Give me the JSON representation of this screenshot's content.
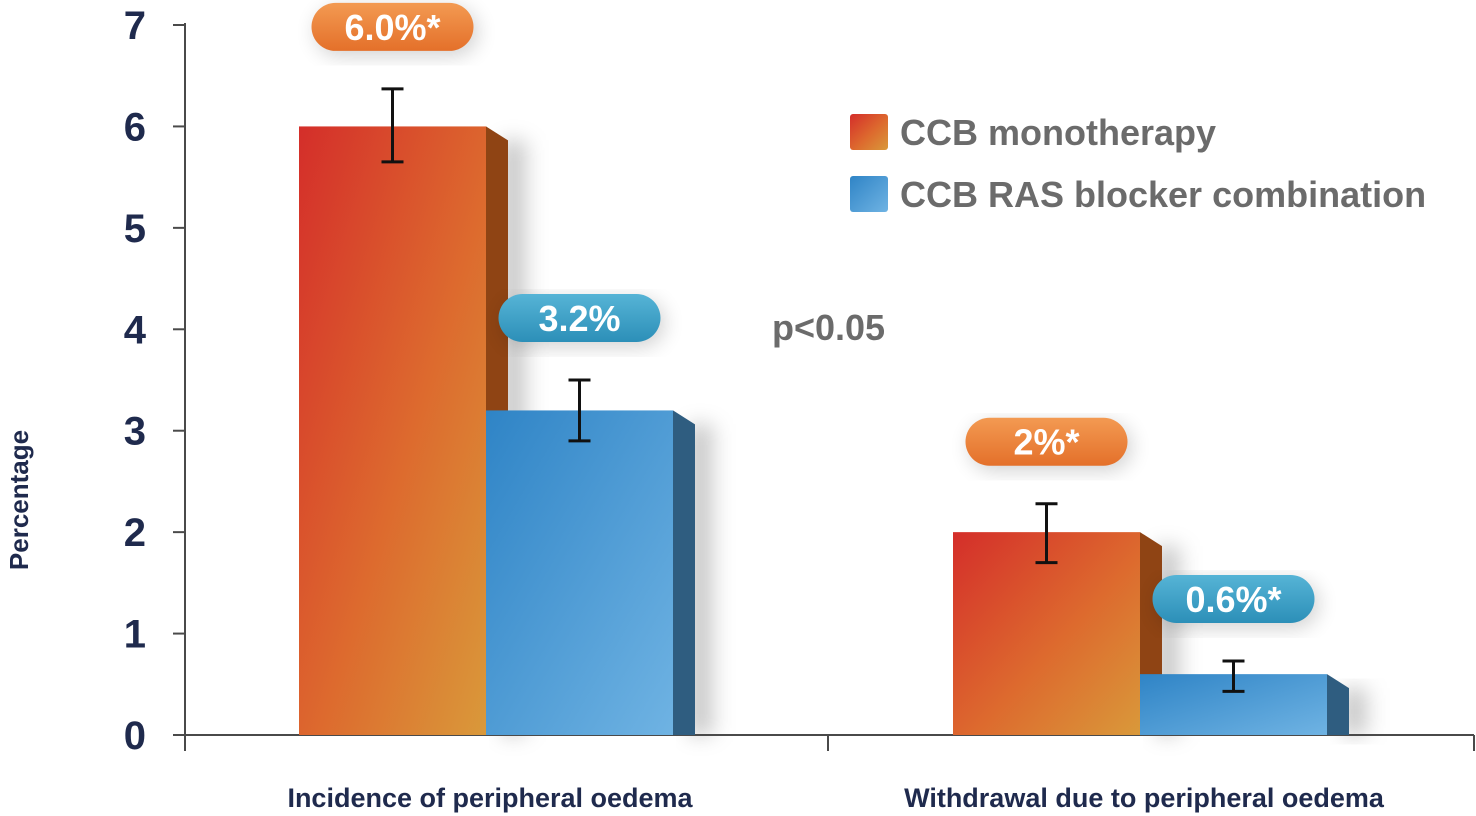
{
  "chart_data": {
    "type": "bar",
    "ylabel": "Percentage",
    "xlabel": "",
    "ylim": [
      0,
      7
    ],
    "yticks": [
      0,
      1,
      2,
      3,
      4,
      5,
      6,
      7
    ],
    "categories": [
      "Incidence of peripheral oedema",
      "Withdrawal due to peripheral oedema"
    ],
    "series": [
      {
        "name": "CCB monotherapy",
        "values": [
          6.0,
          2.0
        ],
        "error": [
          [
            5.65,
            6.37
          ],
          [
            1.7,
            2.28
          ]
        ],
        "labels": [
          "6.0%*",
          "2%*"
        ],
        "color": "#d9462e"
      },
      {
        "name": "CCB RAS blocker combination",
        "values": [
          3.2,
          0.6
        ],
        "error": [
          [
            2.9,
            3.5
          ],
          [
            0.43,
            0.73
          ]
        ],
        "labels": [
          "3.2%",
          "0.6%*"
        ],
        "color": "#3a92d0"
      }
    ],
    "annotation": "p<0.05",
    "legend_position": "top-right",
    "grid": false
  }
}
